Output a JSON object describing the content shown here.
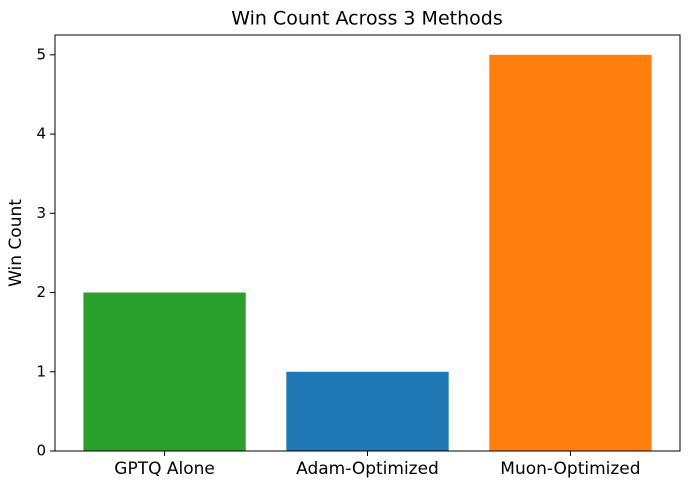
{
  "chart_data": {
    "type": "bar",
    "title": "Win Count Across 3 Methods",
    "y_label": "Win Count",
    "categories": [
      "GPTQ Alone",
      "Adam-Optimized",
      "Muon-Optimized"
    ],
    "values": [
      2,
      1,
      5
    ],
    "colors": [
      "#2ca02c",
      "#1f77b4",
      "#ff7f0e"
    ],
    "ylim": [
      0,
      5.25
    ],
    "yticks": [
      0,
      1,
      2,
      3,
      4,
      5
    ],
    "grid": false
  }
}
